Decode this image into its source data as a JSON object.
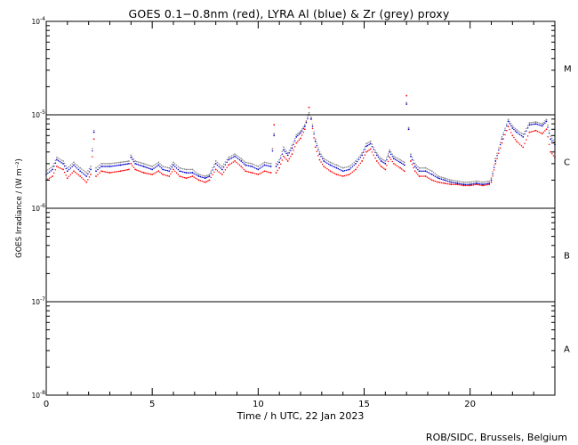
{
  "chart_data": {
    "type": "scatter",
    "title": "GOES 0.1−0.8nm (red), LYRA Al (blue) & Zr (grey) proxy",
    "xlabel": "Time / h UTC, 22 Jan 2023",
    "ylabel": "GOES Irradiance / (W m⁻²)",
    "xlim": [
      0,
      24
    ],
    "ylim": [
      1e-08,
      0.0001
    ],
    "yscale": "log",
    "x_ticks": [
      0,
      5,
      10,
      15,
      20
    ],
    "y_ticks": [
      {
        "value": 1e-08,
        "label": "10",
        "exp": "-8"
      },
      {
        "value": 1e-07,
        "label": "10",
        "exp": "-7"
      },
      {
        "value": 1e-06,
        "label": "10",
        "exp": "-6"
      },
      {
        "value": 1e-05,
        "label": "10",
        "exp": "-5"
      },
      {
        "value": 0.0001,
        "label": "10",
        "exp": "-4"
      }
    ],
    "flare_classes": [
      {
        "label": "A",
        "value": 3.16e-08
      },
      {
        "label": "B",
        "value": 3.16e-07
      },
      {
        "label": "C",
        "value": 3.16e-06
      },
      {
        "label": "M",
        "value": 3.16e-05
      }
    ],
    "threshold_lines": [
      1e-07,
      1e-06,
      1e-05
    ],
    "grid": false,
    "series": [
      {
        "name": "GOES 0.1−0.8nm",
        "color": "#ff0000",
        "x": [
          0,
          0.3,
          0.5,
          0.8,
          1.0,
          1.3,
          1.6,
          1.9,
          2.1,
          2.25,
          2.35,
          2.6,
          3.0,
          3.5,
          3.9,
          4.0,
          4.2,
          4.6,
          5.0,
          5.3,
          5.5,
          5.8,
          6.0,
          6.3,
          6.6,
          6.9,
          7.2,
          7.5,
          7.7,
          8.0,
          8.3,
          8.6,
          8.9,
          9.2,
          9.4,
          9.7,
          10.0,
          10.3,
          10.6,
          10.75,
          10.85,
          11.0,
          11.2,
          11.4,
          11.6,
          11.8,
          12.0,
          12.2,
          12.4,
          12.5,
          12.7,
          12.9,
          13.1,
          13.4,
          13.7,
          14.0,
          14.3,
          14.6,
          14.9,
          15.1,
          15.3,
          15.6,
          15.8,
          16.0,
          16.2,
          16.4,
          16.7,
          16.9,
          17.0,
          17.1,
          17.2,
          17.4,
          17.6,
          17.9,
          18.2,
          18.5,
          18.8,
          19.1,
          19.4,
          19.7,
          20.0,
          20.3,
          20.6,
          20.9,
          21.0,
          21.2,
          21.5,
          21.8,
          22.0,
          22.2,
          22.5,
          22.8,
          23.1,
          23.4,
          23.6,
          23.8,
          24.0
        ],
        "values": [
          2e-06,
          2.2e-06,
          2.8e-06,
          2.6e-06,
          2.1e-06,
          2.5e-06,
          2.2e-06,
          1.9e-06,
          2.3e-06,
          5.5e-06,
          2.2e-06,
          2.5e-06,
          2.4e-06,
          2.5e-06,
          2.6e-06,
          3e-06,
          2.6e-06,
          2.4e-06,
          2.3e-06,
          2.5e-06,
          2.3e-06,
          2.2e-06,
          2.6e-06,
          2.2e-06,
          2.1e-06,
          2.2e-06,
          2e-06,
          1.9e-06,
          2e-06,
          2.6e-06,
          2.3e-06,
          2.9e-06,
          3.2e-06,
          2.8e-06,
          2.5e-06,
          2.4e-06,
          2.3e-06,
          2.5e-06,
          2.4e-06,
          7.8e-06,
          2.4e-06,
          2.7e-06,
          3.6e-06,
          3.2e-06,
          3.8e-06,
          5e-06,
          5.6e-06,
          7e-06,
          1.2e-05,
          9e-06,
          4.5e-06,
          3.3e-06,
          2.8e-06,
          2.5e-06,
          2.3e-06,
          2.2e-06,
          2.3e-06,
          2.6e-06,
          3.2e-06,
          4e-06,
          4.3e-06,
          3.2e-06,
          2.8e-06,
          2.6e-06,
          3.5e-06,
          3e-06,
          2.7e-06,
          2.5e-06,
          1.6e-05,
          7e-06,
          3.2e-06,
          2.5e-06,
          2.2e-06,
          2.2e-06,
          2e-06,
          1.9e-06,
          1.85e-06,
          1.8e-06,
          1.8e-06,
          1.75e-06,
          1.75e-06,
          1.8e-06,
          1.75e-06,
          1.8e-06,
          1.9e-06,
          3e-06,
          5e-06,
          7.5e-06,
          6e-06,
          5.2e-06,
          4.5e-06,
          6.5e-06,
          6.8e-06,
          6.3e-06,
          7e-06,
          4e-06,
          3.5e-06
        ]
      },
      {
        "name": "LYRA Al proxy",
        "color": "#0000cc",
        "x": [
          0,
          0.3,
          0.5,
          0.8,
          1.0,
          1.3,
          1.6,
          1.9,
          2.1,
          2.25,
          2.35,
          2.6,
          3.0,
          3.5,
          3.9,
          4.0,
          4.2,
          4.6,
          5.0,
          5.3,
          5.5,
          5.8,
          6.0,
          6.3,
          6.6,
          6.9,
          7.2,
          7.5,
          7.7,
          8.0,
          8.3,
          8.6,
          8.9,
          9.2,
          9.4,
          9.7,
          10.0,
          10.3,
          10.6,
          10.75,
          10.85,
          11.0,
          11.2,
          11.4,
          11.6,
          11.8,
          12.0,
          12.2,
          12.4,
          12.5,
          12.7,
          12.9,
          13.1,
          13.4,
          13.7,
          14.0,
          14.3,
          14.6,
          14.9,
          15.1,
          15.3,
          15.6,
          15.8,
          16.0,
          16.2,
          16.4,
          16.7,
          16.9,
          17.0,
          17.1,
          17.2,
          17.4,
          17.6,
          17.9,
          18.2,
          18.5,
          18.8,
          19.1,
          19.4,
          19.7,
          20.0,
          20.3,
          20.6,
          20.9,
          21.0,
          21.2,
          21.5,
          21.8,
          22.0,
          22.2,
          22.5,
          22.8,
          23.1,
          23.4,
          23.6,
          23.8,
          24.0
        ],
        "values": [
          2.3e-06,
          2.6e-06,
          3.3e-06,
          3e-06,
          2.5e-06,
          2.9e-06,
          2.5e-06,
          2.2e-06,
          2.6e-06,
          6.5e-06,
          2.5e-06,
          2.8e-06,
          2.8e-06,
          2.9e-06,
          3e-06,
          3.5e-06,
          3e-06,
          2.8e-06,
          2.6e-06,
          2.9e-06,
          2.6e-06,
          2.5e-06,
          2.9e-06,
          2.5e-06,
          2.4e-06,
          2.4e-06,
          2.2e-06,
          2.1e-06,
          2.2e-06,
          3e-06,
          2.6e-06,
          3.3e-06,
          3.6e-06,
          3.2e-06,
          2.9e-06,
          2.8e-06,
          2.6e-06,
          2.9e-06,
          2.8e-06,
          6e-06,
          2.8e-06,
          3.1e-06,
          4.2e-06,
          3.7e-06,
          4.4e-06,
          5.8e-06,
          6.4e-06,
          7.5e-06,
          1e-05,
          9e-06,
          5.2e-06,
          3.8e-06,
          3.2e-06,
          2.9e-06,
          2.7e-06,
          2.5e-06,
          2.6e-06,
          3e-06,
          3.7e-06,
          4.6e-06,
          4.9e-06,
          3.7e-06,
          3.2e-06,
          3e-06,
          4e-06,
          3.4e-06,
          3.1e-06,
          2.9e-06,
          1.3e-05,
          7e-06,
          3.6e-06,
          2.8e-06,
          2.5e-06,
          2.5e-06,
          2.3e-06,
          2.1e-06,
          2e-06,
          1.9e-06,
          1.85e-06,
          1.8e-06,
          1.8e-06,
          1.85e-06,
          1.8e-06,
          1.85e-06,
          2e-06,
          3.2e-06,
          5.5e-06,
          8.5e-06,
          7.2e-06,
          6.5e-06,
          5.8e-06,
          7.8e-06,
          8e-06,
          7.6e-06,
          8.5e-06,
          5.5e-06,
          4.8e-06
        ]
      },
      {
        "name": "LYRA Zr proxy",
        "color": "#888888",
        "x": [
          0,
          0.3,
          0.5,
          0.8,
          1.0,
          1.3,
          1.6,
          1.9,
          2.1,
          2.25,
          2.35,
          2.6,
          3.0,
          3.5,
          3.9,
          4.0,
          4.2,
          4.6,
          5.0,
          5.3,
          5.5,
          5.8,
          6.0,
          6.3,
          6.6,
          6.9,
          7.2,
          7.5,
          7.7,
          8.0,
          8.3,
          8.6,
          8.9,
          9.2,
          9.4,
          9.7,
          10.0,
          10.3,
          10.6,
          10.75,
          10.85,
          11.0,
          11.2,
          11.4,
          11.6,
          11.8,
          12.0,
          12.2,
          12.4,
          12.5,
          12.7,
          12.9,
          13.1,
          13.4,
          13.7,
          14.0,
          14.3,
          14.6,
          14.9,
          15.1,
          15.3,
          15.6,
          15.8,
          16.0,
          16.2,
          16.4,
          16.7,
          16.9,
          17.0,
          17.1,
          17.2,
          17.4,
          17.6,
          17.9,
          18.2,
          18.5,
          18.8,
          19.1,
          19.4,
          19.7,
          20.0,
          20.3,
          20.6,
          20.9,
          21.0,
          21.2,
          21.5,
          21.8,
          22.0,
          22.2,
          22.5,
          22.8,
          23.1,
          23.4,
          23.6,
          23.8,
          24.0
        ],
        "values": [
          2.5e-06,
          2.8e-06,
          3.5e-06,
          3.2e-06,
          2.7e-06,
          3.1e-06,
          2.7e-06,
          2.4e-06,
          2.8e-06,
          6.8e-06,
          2.7e-06,
          3e-06,
          3e-06,
          3.1e-06,
          3.2e-06,
          3.7e-06,
          3.2e-06,
          3e-06,
          2.8e-06,
          3.1e-06,
          2.8e-06,
          2.7e-06,
          3.1e-06,
          2.7e-06,
          2.6e-06,
          2.6e-06,
          2.3e-06,
          2.2e-06,
          2.3e-06,
          3.2e-06,
          2.8e-06,
          3.5e-06,
          3.8e-06,
          3.4e-06,
          3.1e-06,
          3e-06,
          2.8e-06,
          3.1e-06,
          3e-06,
          6.3e-06,
          3e-06,
          3.3e-06,
          4.5e-06,
          3.9e-06,
          4.7e-06,
          6.1e-06,
          6.7e-06,
          7.8e-06,
          1.05e-05,
          9.4e-06,
          5.5e-06,
          4e-06,
          3.4e-06,
          3.1e-06,
          2.9e-06,
          2.7e-06,
          2.8e-06,
          3.2e-06,
          3.9e-06,
          4.9e-06,
          5.2e-06,
          3.9e-06,
          3.4e-06,
          3.2e-06,
          4.2e-06,
          3.6e-06,
          3.3e-06,
          3.1e-06,
          1.35e-05,
          7.3e-06,
          3.8e-06,
          3e-06,
          2.7e-06,
          2.7e-06,
          2.5e-06,
          2.2e-06,
          2.1e-06,
          2e-06,
          1.95e-06,
          1.9e-06,
          1.9e-06,
          1.95e-06,
          1.9e-06,
          1.95e-06,
          2.1e-06,
          3.4e-06,
          5.8e-06,
          8.9e-06,
          7.6e-06,
          6.9e-06,
          6.2e-06,
          8.2e-06,
          8.4e-06,
          8e-06,
          8.9e-06,
          5.9e-06,
          5.1e-06
        ]
      }
    ]
  },
  "credit": "ROB/SIDC, Brussels, Belgium"
}
